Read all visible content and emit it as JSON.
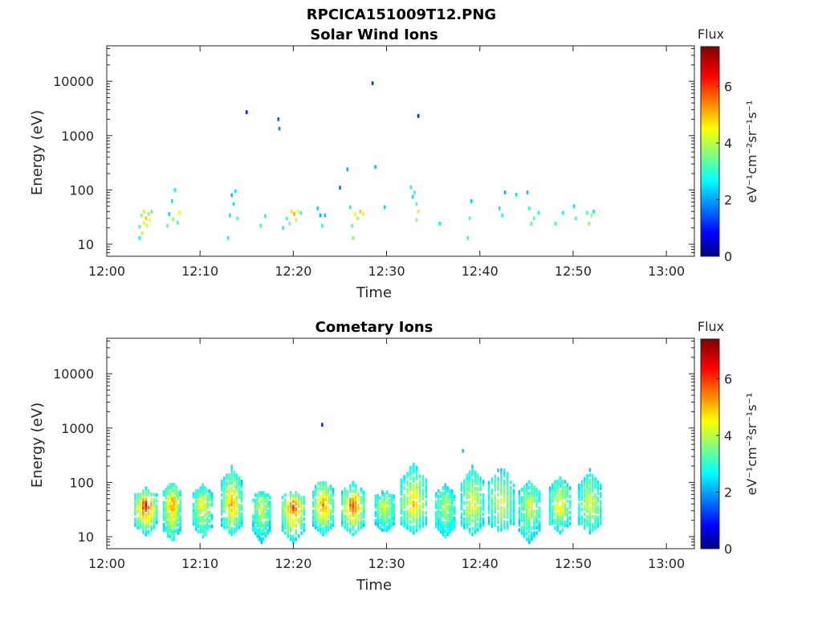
{
  "figure_title": "RPCICA151009T12.PNG",
  "colors": {
    "axis": "#262626",
    "background": "#ffffff"
  },
  "chart_data": [
    {
      "type": "heatmap",
      "title": "Solar Wind Ions",
      "xlabel": "Time",
      "ylabel": "Energy (eV)",
      "x_tick_labels": [
        "12:00",
        "12:10",
        "12:20",
        "12:30",
        "12:40",
        "12:50",
        "13:00"
      ],
      "x_range_minutes": [
        0,
        63
      ],
      "y_scale": "log",
      "y_tick_labels": [
        "10",
        "100",
        "1000",
        "10000"
      ],
      "y_range": [
        6,
        45000
      ],
      "colorbar": {
        "label_top": "Flux",
        "unit": "eV⁻¹cm⁻²sr⁻¹s⁻¹",
        "ticks": [
          "0",
          "2",
          "4",
          "6"
        ],
        "range": [
          0,
          7.4
        ],
        "colormap": "jet"
      },
      "points": [
        [
          3.5,
          13,
          2.8
        ],
        [
          3.5,
          21,
          3.6
        ],
        [
          3.7,
          34,
          3.8
        ],
        [
          3.8,
          16,
          4.2
        ],
        [
          4.0,
          25,
          4.5
        ],
        [
          4.0,
          40,
          4.8
        ],
        [
          4.2,
          30,
          5.0
        ],
        [
          4.3,
          22,
          4.4
        ],
        [
          4.5,
          36,
          3.8
        ],
        [
          4.6,
          28,
          4.6
        ],
        [
          4.8,
          40,
          3.5
        ],
        [
          6.5,
          22,
          3.4
        ],
        [
          6.7,
          36,
          2.5
        ],
        [
          7.0,
          62,
          2.6
        ],
        [
          7.1,
          29,
          3.9
        ],
        [
          7.3,
          100,
          2.8
        ],
        [
          7.6,
          25,
          3.2
        ],
        [
          7.8,
          38,
          4.5
        ],
        [
          13.0,
          13,
          3.0
        ],
        [
          13.2,
          34,
          2.6
        ],
        [
          13.4,
          80,
          2.3
        ],
        [
          13.6,
          55,
          2.6
        ],
        [
          13.8,
          95,
          2.7
        ],
        [
          14.0,
          30,
          3.3
        ],
        [
          15.0,
          2700,
          1.2
        ],
        [
          16.5,
          22,
          3.0
        ],
        [
          17.0,
          33,
          2.9
        ],
        [
          18.4,
          2000,
          1.6
        ],
        [
          18.5,
          1350,
          1.9
        ],
        [
          18.9,
          20,
          2.8
        ],
        [
          19.3,
          30,
          3.2
        ],
        [
          19.6,
          24,
          3.6
        ],
        [
          19.8,
          40,
          4.8
        ],
        [
          20.1,
          36,
          5.2
        ],
        [
          20.3,
          28,
          4.1
        ],
        [
          20.5,
          40,
          4.6
        ],
        [
          20.8,
          38,
          3.0
        ],
        [
          22.6,
          46,
          2.5
        ],
        [
          22.9,
          34,
          2.2
        ],
        [
          23.1,
          22,
          3.1
        ],
        [
          23.4,
          34,
          2.4
        ],
        [
          25.0,
          110,
          1.7
        ],
        [
          25.8,
          240,
          2.2
        ],
        [
          26.1,
          48,
          2.7
        ],
        [
          26.3,
          22,
          3.3
        ],
        [
          26.4,
          13,
          3.8
        ],
        [
          26.6,
          36,
          4.6
        ],
        [
          26.9,
          30,
          4.0
        ],
        [
          27.2,
          40,
          5.0
        ],
        [
          27.5,
          36,
          4.3
        ],
        [
          28.5,
          9200,
          1.3
        ],
        [
          28.8,
          265,
          2.3
        ],
        [
          29.8,
          48,
          2.5
        ],
        [
          32.6,
          112,
          3.0
        ],
        [
          32.8,
          75,
          2.6
        ],
        [
          33.0,
          90,
          2.9
        ],
        [
          33.2,
          55,
          3.5
        ],
        [
          33.4,
          40,
          4.2
        ],
        [
          33.2,
          28,
          3.8
        ],
        [
          33.4,
          2300,
          1.2
        ],
        [
          35.7,
          24,
          2.7
        ],
        [
          38.7,
          13,
          3.1
        ],
        [
          38.9,
          30,
          3.3
        ],
        [
          39.1,
          62,
          2.4
        ],
        [
          42.1,
          46,
          2.6
        ],
        [
          42.4,
          34,
          2.9
        ],
        [
          42.7,
          90,
          2.2
        ],
        [
          43.9,
          82,
          2.6
        ],
        [
          45.1,
          90,
          2.3
        ],
        [
          45.3,
          46,
          3.1
        ],
        [
          45.5,
          24,
          3.5
        ],
        [
          45.8,
          30,
          3.3
        ],
        [
          46.3,
          38,
          2.8
        ],
        [
          48.1,
          24,
          3.1
        ],
        [
          48.9,
          38,
          2.9
        ],
        [
          50.1,
          50,
          2.6
        ],
        [
          50.3,
          30,
          3.4
        ],
        [
          51.5,
          38,
          3.3
        ],
        [
          51.7,
          24,
          3.8
        ],
        [
          52.0,
          34,
          3.9
        ],
        [
          52.2,
          40,
          2.6
        ]
      ]
    },
    {
      "type": "heatmap",
      "title": "Cometary Ions",
      "xlabel": "Time",
      "ylabel": "Energy (eV)",
      "x_tick_labels": [
        "12:00",
        "12:10",
        "12:20",
        "12:30",
        "12:40",
        "12:50",
        "13:00"
      ],
      "x_range_minutes": [
        0,
        63
      ],
      "y_scale": "log",
      "y_tick_labels": [
        "10",
        "100",
        "1000",
        "10000"
      ],
      "y_range": [
        6,
        45000
      ],
      "colorbar": {
        "label_top": "Flux",
        "unit": "eV⁻¹cm⁻²sr⁻¹s⁻¹",
        "ticks": [
          "0",
          "2",
          "4",
          "6"
        ],
        "range": [
          0,
          7.4
        ],
        "colormap": "jet"
      },
      "points": [
        [
          23.1,
          1150,
          1.2
        ],
        [
          38.2,
          380,
          2.3
        ]
      ],
      "bursts": [
        {
          "t": 4.2,
          "width": 2.6,
          "top": 80,
          "bottom": 11,
          "peak": 6.6
        },
        {
          "t": 7.0,
          "width": 2.0,
          "top": 110,
          "bottom": 8,
          "peak": 5.6
        },
        {
          "t": 10.3,
          "width": 2.2,
          "top": 90,
          "bottom": 10,
          "peak": 4.8
        },
        {
          "t": 13.4,
          "width": 2.4,
          "top": 200,
          "bottom": 11,
          "peak": 5.4
        },
        {
          "t": 16.6,
          "width": 2.0,
          "top": 70,
          "bottom": 8,
          "peak": 4.5
        },
        {
          "t": 20.0,
          "width": 2.6,
          "top": 70,
          "bottom": 8,
          "peak": 6.2
        },
        {
          "t": 23.2,
          "width": 2.4,
          "top": 120,
          "bottom": 11,
          "peak": 5.6
        },
        {
          "t": 26.4,
          "width": 2.6,
          "top": 100,
          "bottom": 11,
          "peak": 6.2
        },
        {
          "t": 29.8,
          "width": 2.2,
          "top": 70,
          "bottom": 12,
          "peak": 4.5
        },
        {
          "t": 32.9,
          "width": 3.0,
          "top": 230,
          "bottom": 12,
          "peak": 5.0
        },
        {
          "t": 36.3,
          "width": 2.2,
          "top": 90,
          "bottom": 10,
          "peak": 4.2
        },
        {
          "t": 39.2,
          "width": 2.6,
          "top": 200,
          "bottom": 11,
          "peak": 4.8
        },
        {
          "t": 42.3,
          "width": 3.0,
          "top": 200,
          "bottom": 12,
          "peak": 4.5
        },
        {
          "t": 45.3,
          "width": 2.4,
          "top": 110,
          "bottom": 8,
          "peak": 4.4
        },
        {
          "t": 48.6,
          "width": 2.4,
          "top": 130,
          "bottom": 12,
          "peak": 4.8
        },
        {
          "t": 51.8,
          "width": 2.6,
          "top": 170,
          "bottom": 12,
          "peak": 4.6
        }
      ]
    }
  ]
}
